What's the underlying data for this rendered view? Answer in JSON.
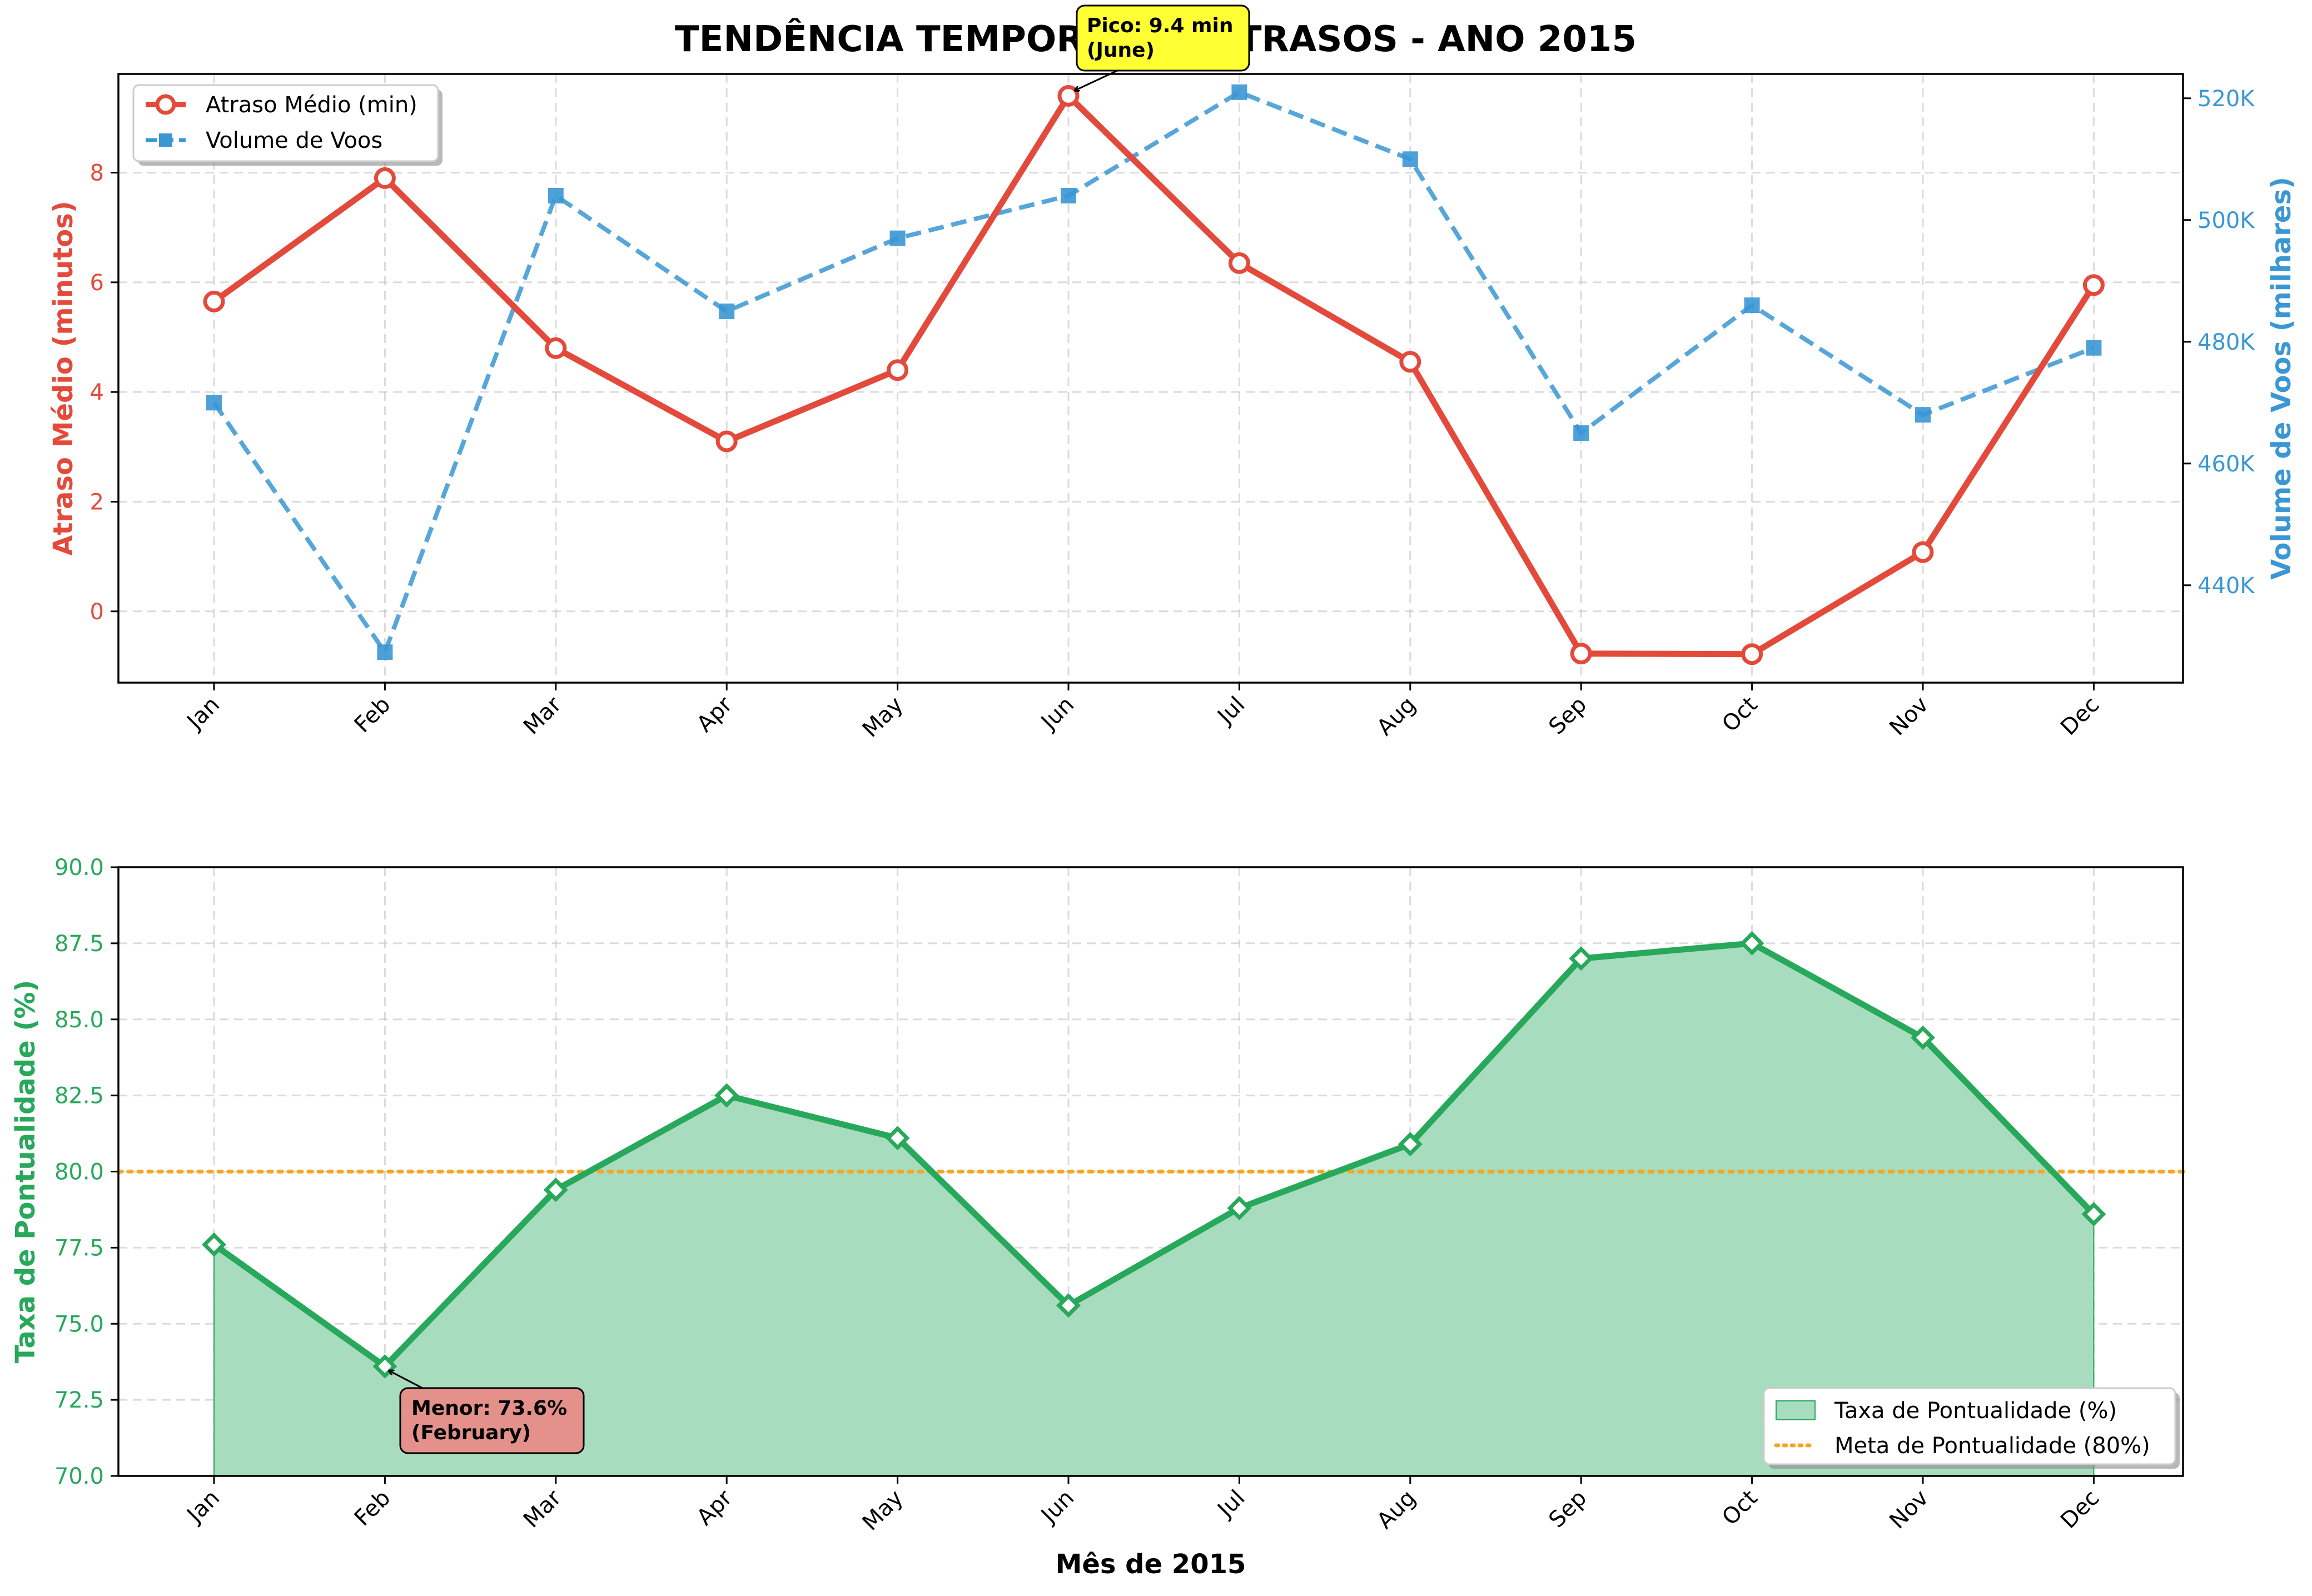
{
  "title": "TENDÊNCIA TEMPORAL DE ATRASOS - ANO 2015",
  "colors": {
    "delay": "#e34a3b",
    "volume": "#3a97d4",
    "punctuality": "#27a85a",
    "punctuality_fill": "#a8dcbe",
    "target": "#f5a623",
    "peak_box": "#ffff33",
    "low_box": "#e3918a"
  },
  "chart_data": [
    {
      "type": "line",
      "categories": [
        "Jan",
        "Feb",
        "Mar",
        "Apr",
        "May",
        "Jun",
        "Jul",
        "Aug",
        "Sep",
        "Oct",
        "Nov",
        "Dec"
      ],
      "ylabel": "Atraso Médio (minutos)",
      "ylabel_right": "Volume de Voos (milhares)",
      "ylim": [
        -1.3,
        9.8
      ],
      "ylim_right": [
        424,
        524
      ],
      "yticks": [
        0,
        2,
        4,
        6,
        8
      ],
      "yticks_right": [
        440,
        460,
        480,
        500,
        520
      ],
      "yticks_right_labels": [
        "440K",
        "460K",
        "480K",
        "500K",
        "520K"
      ],
      "grid": true,
      "legend_position": "top-left",
      "series": [
        {
          "name": "Atraso Médio (min)",
          "axis": "left",
          "values": [
            5.65,
            7.9,
            4.8,
            3.1,
            4.4,
            9.4,
            6.35,
            4.55,
            -0.77,
            -0.78,
            1.08,
            5.95
          ]
        },
        {
          "name": "Volume de Voos",
          "axis": "right",
          "values": [
            470,
            429,
            504,
            485,
            497,
            504,
            521,
            510,
            465,
            486,
            468,
            479
          ]
        }
      ],
      "annotation": {
        "text_line1": "Pico: 9.4 min",
        "text_line2": "(June)",
        "category": "Jun",
        "value": 9.4
      }
    },
    {
      "type": "area",
      "categories": [
        "Jan",
        "Feb",
        "Mar",
        "Apr",
        "May",
        "Jun",
        "Jul",
        "Aug",
        "Sep",
        "Oct",
        "Nov",
        "Dec"
      ],
      "xlabel": "Mês de 2015",
      "ylabel": "Taxa de Pontualidade (%)",
      "ylim": [
        70,
        90
      ],
      "yticks": [
        70.0,
        72.5,
        75.0,
        77.5,
        80.0,
        82.5,
        85.0,
        87.5,
        90.0
      ],
      "yticks_labels": [
        "70.0",
        "72.5",
        "75.0",
        "77.5",
        "80.0",
        "82.5",
        "85.0",
        "87.5",
        "90.0"
      ],
      "grid": true,
      "legend_position": "bottom-right",
      "series": [
        {
          "name": "Taxa de Pontualidade (%)",
          "values": [
            77.6,
            73.6,
            79.4,
            82.5,
            81.1,
            75.6,
            78.8,
            80.9,
            87.0,
            87.5,
            84.4,
            78.6
          ]
        }
      ],
      "target": {
        "name": "Meta de Pontualidade (80%)",
        "value": 80
      },
      "annotation": {
        "text_line1": "Menor: 73.6%",
        "text_line2": "(February)",
        "category": "Feb",
        "value": 73.6
      }
    }
  ]
}
